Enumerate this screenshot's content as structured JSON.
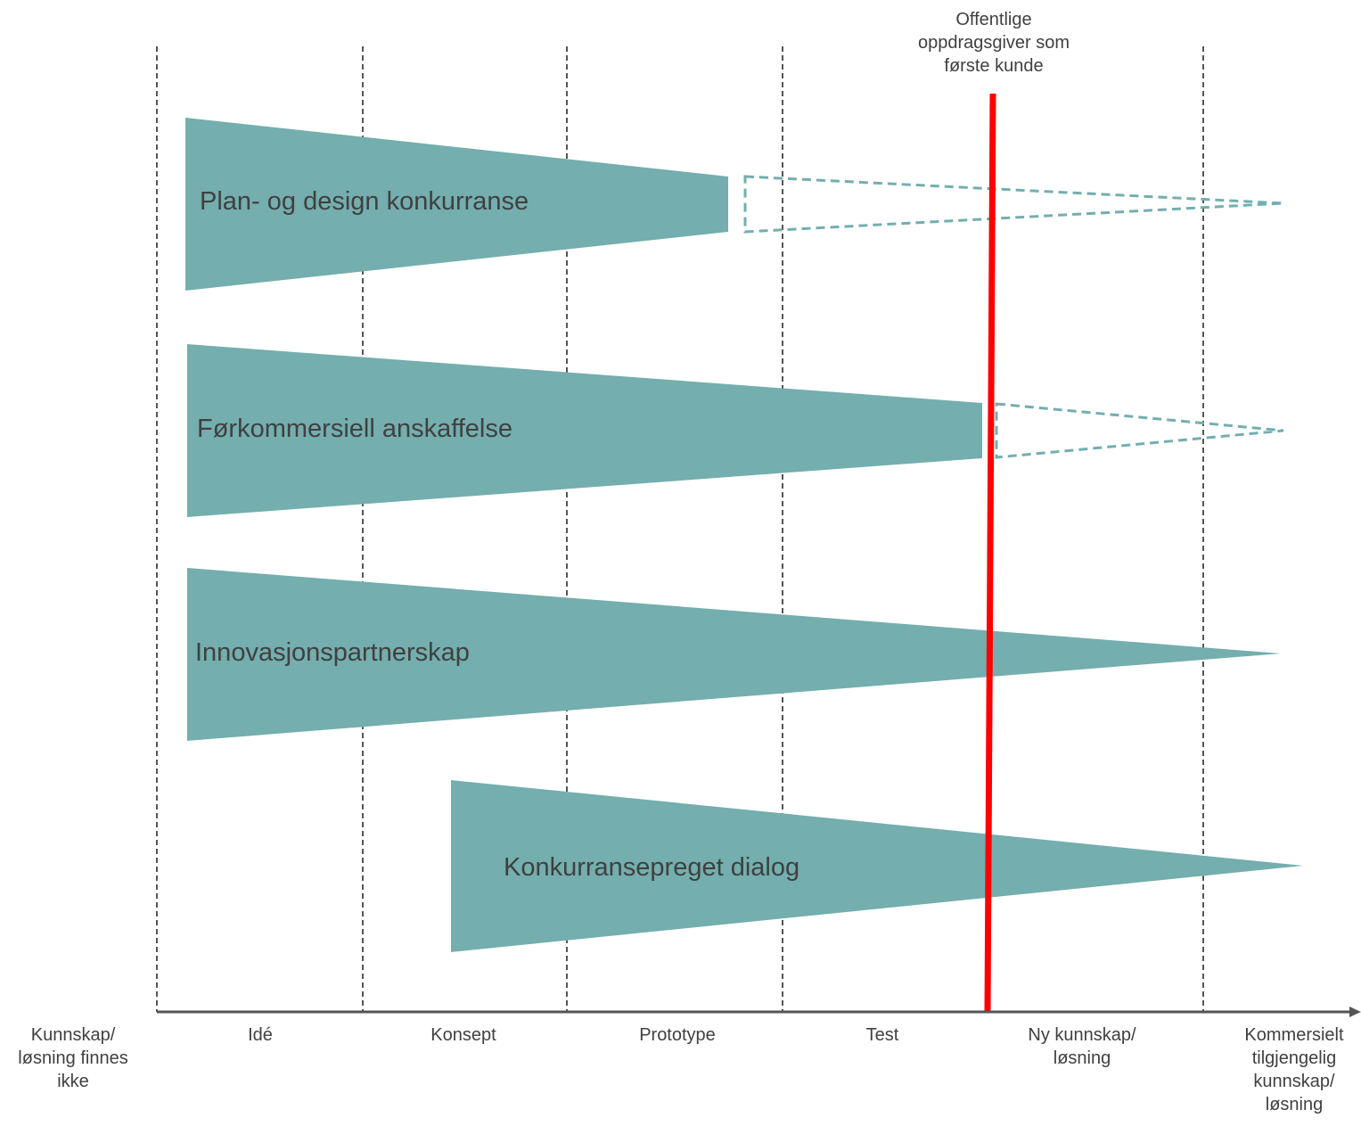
{
  "colors": {
    "wedge": "#74aeae",
    "wedge_outline": "#74aeae",
    "marker": "#ff0000",
    "gridline": "#555555",
    "axis": "#555555",
    "text": "#404040"
  },
  "marker_label": "Offentlige\noppdragsgiver som\nførste kunde",
  "origin_label": "Kunnskap/\nløsning finnes\nikke",
  "stages": [
    {
      "label": "Idé"
    },
    {
      "label": "Konsept"
    },
    {
      "label": "Prototype"
    },
    {
      "label": "Test"
    },
    {
      "label": "Ny kunnskap/\nløsning"
    },
    {
      "label": "Kommersielt\ntilgjengelig\nkunnskap/\nløsning"
    }
  ],
  "procedures": [
    {
      "label": "Plan- og design konkurranse",
      "continuation": "dashed"
    },
    {
      "label": "Førkommersiell anskaffelse",
      "continuation": "dashed"
    },
    {
      "label": "Innovasjonspartnerskap",
      "continuation": "none"
    },
    {
      "label": "Konkurransepreget dialog",
      "continuation": "none"
    }
  ]
}
